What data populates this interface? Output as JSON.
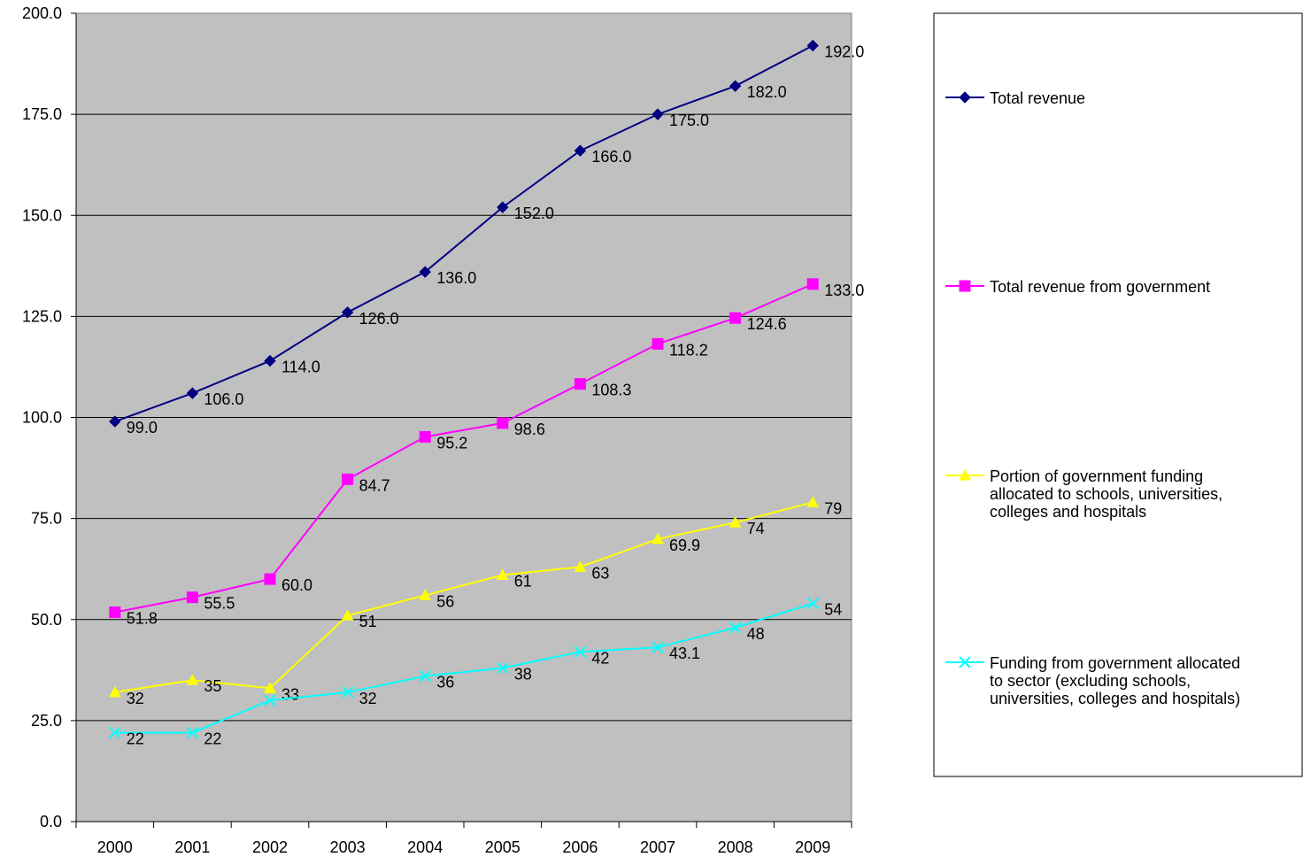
{
  "chart_data": {
    "type": "line",
    "categories": [
      "2000",
      "2001",
      "2002",
      "2003",
      "2004",
      "2005",
      "2006",
      "2007",
      "2008",
      "2009"
    ],
    "ylim": [
      0,
      200
    ],
    "yticks": [
      0,
      25,
      50,
      75,
      100,
      125,
      150,
      175,
      200
    ],
    "ytick_labels": [
      "0.0",
      "25.0",
      "50.0",
      "75.0",
      "100.0",
      "125.0",
      "150.0",
      "175.0",
      "200.0"
    ],
    "grid": true,
    "legend_position": "right",
    "plot_background": "#c0c0c0",
    "series": [
      {
        "name": "Total revenue",
        "color": "#000080",
        "marker": "diamond",
        "values": [
          99.0,
          106.0,
          114.0,
          126.0,
          136.0,
          152.0,
          166.0,
          175.0,
          182.0,
          192.0
        ],
        "labels": [
          "99.0",
          "106.0",
          "114.0",
          "126.0",
          "136.0",
          "152.0",
          "166.0",
          "175.0",
          "182.0",
          "192.0"
        ]
      },
      {
        "name": "Total revenue from government",
        "color": "#ff00ff",
        "marker": "square",
        "values": [
          51.8,
          55.5,
          60.0,
          84.7,
          95.2,
          98.6,
          108.3,
          118.2,
          124.6,
          133.0
        ],
        "labels": [
          "51.8",
          "55.5",
          "60.0",
          "84.7",
          "95.2",
          "98.6",
          "108.3",
          "118.2",
          "124.6",
          "133.0"
        ]
      },
      {
        "name": "Portion of government funding allocated to schools, universities, colleges and hospitals",
        "color": "#ffff00",
        "marker": "triangle",
        "values": [
          32,
          35,
          33,
          51,
          56,
          61,
          63,
          69.9,
          74,
          79
        ],
        "labels": [
          "32",
          "35",
          "33",
          "51",
          "56",
          "61",
          "63",
          "69.9",
          "74",
          "79"
        ]
      },
      {
        "name": "Funding from government allocated to sector (excluding schools, universities, colleges and hospitals)",
        "color": "#00ffff",
        "marker": "x",
        "values": [
          22,
          22,
          30,
          32,
          36,
          38,
          42,
          43.1,
          48,
          54
        ],
        "labels": [
          "22",
          "22",
          "",
          "32",
          "36",
          "38",
          "42",
          "43.1",
          "48",
          "54"
        ]
      }
    ]
  }
}
